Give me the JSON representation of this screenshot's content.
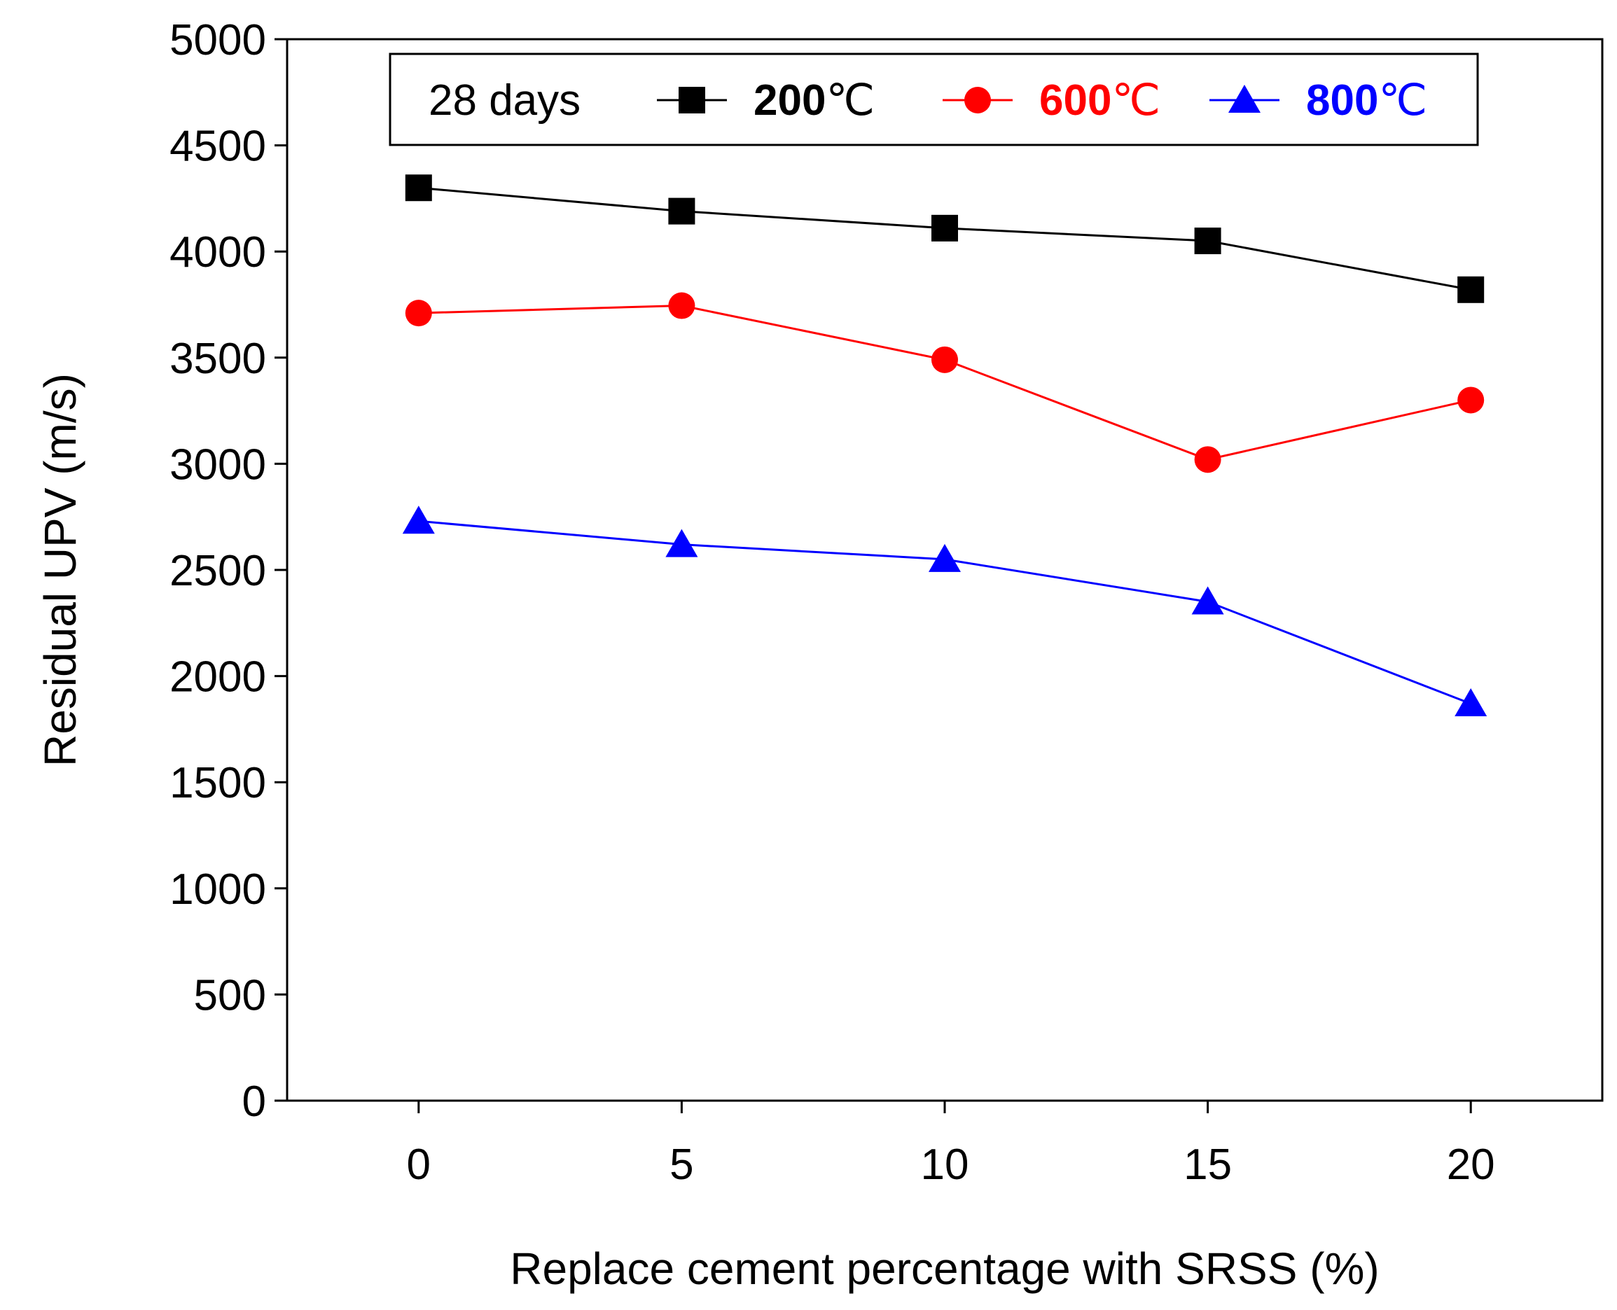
{
  "chart_data": {
    "type": "line",
    "title": "",
    "xlabel": "Replace cement percentage with SRSS (%)",
    "ylabel": "Residual UPV (m/s)",
    "x": [
      0,
      5,
      10,
      15,
      20
    ],
    "xticks": [
      "0",
      "5",
      "10",
      "15",
      "20"
    ],
    "xlim": [
      -2.5,
      22.5
    ],
    "ylim": [
      0,
      5000
    ],
    "yticks": [
      "0",
      "500",
      "1000",
      "1500",
      "2000",
      "2500",
      "3000",
      "3500",
      "4000",
      "4500",
      "5000"
    ],
    "grid": false,
    "legend_position": "top",
    "legend_title": "28 days",
    "series": [
      {
        "name": "200",
        "unit": "℃",
        "color": "#000000",
        "marker": "square",
        "values": [
          4300,
          4190,
          4110,
          4050,
          3820
        ]
      },
      {
        "name": "600",
        "unit": "℃",
        "color": "#ff0000",
        "marker": "circle",
        "values": [
          3710,
          3745,
          3490,
          3020,
          3300
        ]
      },
      {
        "name": "800",
        "unit": "℃",
        "color": "#0000ff",
        "marker": "triangle",
        "values": [
          2730,
          2620,
          2550,
          2350,
          1870
        ]
      }
    ]
  }
}
